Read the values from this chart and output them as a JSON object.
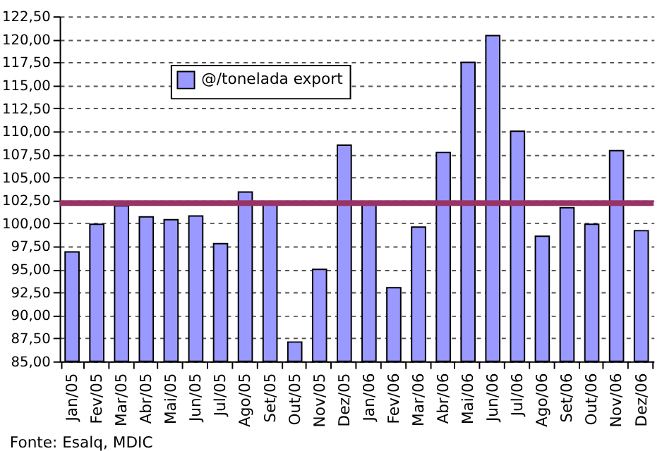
{
  "chart_data": {
    "type": "bar",
    "categories": [
      "Jan/05",
      "Fev/05",
      "Mar/05",
      "Abr/05",
      "Mai/05",
      "Jun/05",
      "Jul/05",
      "Ago/05",
      "Set/05",
      "Out/05",
      "Nov/05",
      "Dez/05",
      "Jan/06",
      "Fev/06",
      "Mar/06",
      "Abr/06",
      "Mai/06",
      "Jun/06",
      "Jul/06",
      "Ago/06",
      "Set/06",
      "Out/06",
      "Nov/06",
      "Dez/06"
    ],
    "series": [
      {
        "name": "@/tonelada export",
        "color": "#9999ff",
        "values": [
          96.9,
          99.9,
          101.9,
          100.7,
          100.4,
          100.8,
          97.8,
          103.4,
          102.0,
          87.1,
          95.0,
          108.5,
          102.0,
          93.0,
          99.6,
          107.7,
          117.5,
          120.4,
          110.0,
          98.6,
          101.7,
          99.9,
          107.9,
          99.2
        ]
      }
    ],
    "ylim": [
      85,
      122.5
    ],
    "yticks": [
      {
        "value": 85,
        "label": "85,00"
      },
      {
        "value": 87.5,
        "label": "87,50"
      },
      {
        "value": 90,
        "label": "90,00"
      },
      {
        "value": 92.5,
        "label": "92,50"
      },
      {
        "value": 95,
        "label": "95,00"
      },
      {
        "value": 97.5,
        "label": "97,50"
      },
      {
        "value": 100,
        "label": "100,00"
      },
      {
        "value": 102.5,
        "label": "102,50"
      },
      {
        "value": 105,
        "label": "105,00"
      },
      {
        "value": 107.5,
        "label": "107,50"
      },
      {
        "value": 110,
        "label": "110,00"
      },
      {
        "value": 112.5,
        "label": "112,50"
      },
      {
        "value": 115,
        "label": "115,00"
      },
      {
        "value": 117.5,
        "label": "117,50"
      },
      {
        "value": 120,
        "label": "120,00"
      },
      {
        "value": 122.5,
        "label": "122,50"
      }
    ],
    "grid": "y",
    "legend": "top left",
    "ref_lines": [
      {
        "axis": "y",
        "value": 102.2,
        "color": "#993366"
      }
    ],
    "annotations": [
      "Fonte: Esalq, MDIC"
    ]
  }
}
